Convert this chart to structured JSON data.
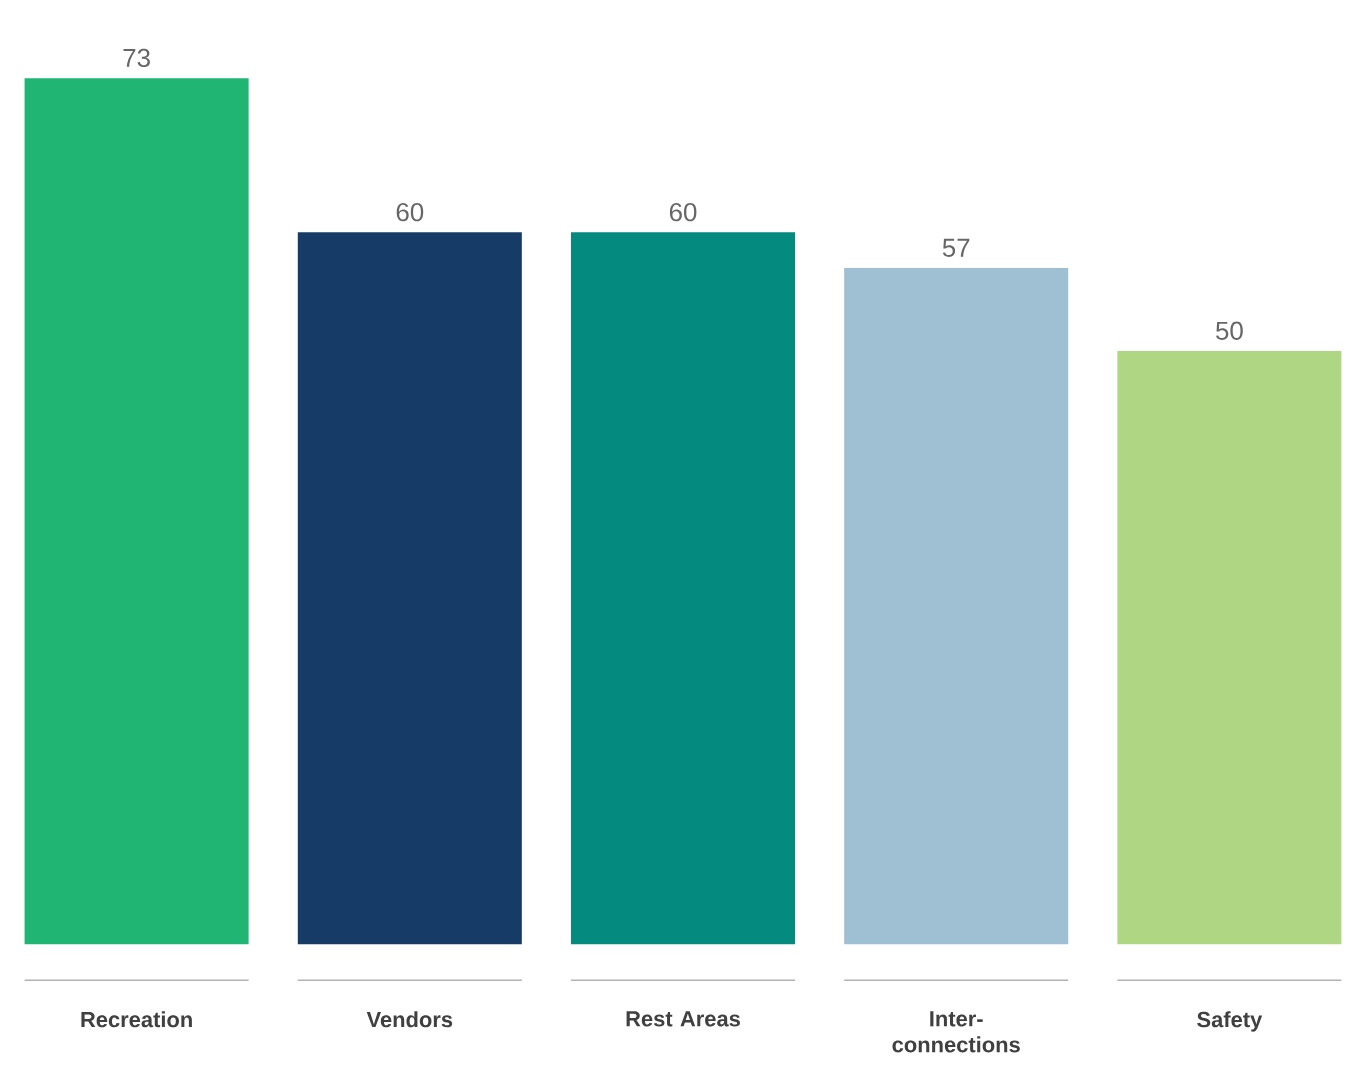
{
  "chart_data": {
    "type": "bar",
    "categories": [
      "Recreation",
      "Vendors",
      "Rest Areas",
      "Inter-connections",
      "Safety"
    ],
    "values": [
      73,
      60,
      60,
      57,
      50
    ],
    "colors": [
      "#21b573",
      "#163b66",
      "#058a80",
      "#9fbfd3",
      "#afd682"
    ],
    "data_labels": true
  }
}
